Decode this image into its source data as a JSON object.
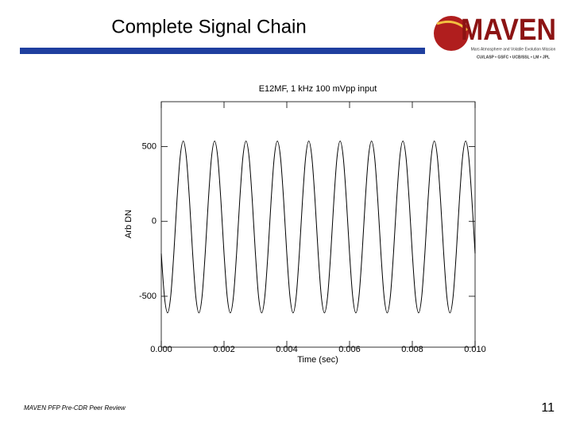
{
  "slide": {
    "title": "Complete Signal Chain",
    "footer": "MAVEN PFP Pre-CDR Peer Review",
    "page_number": "11",
    "logo": {
      "name": "MAVEN",
      "tagline": "Mars Atmosphere and Volatile Evolution Mission",
      "partners": "CU/LASP • GSFC • UCB/SSL • LM • JPL"
    }
  },
  "chart_data": {
    "type": "line",
    "title": "E12MF, 1 kHz 100 mVpp input",
    "x_label": "Time (sec)",
    "y_label": "Arb DN",
    "x": [
      0,
      0.0001,
      0.0002,
      0.0003,
      0.0004,
      0.0005,
      0.0006,
      0.0007,
      0.0008,
      0.0009,
      0.001,
      0.0011,
      0.0012,
      0.0013,
      0.0014,
      0.0015,
      0.0016,
      0.0017,
      0.0018,
      0.0019,
      0.002,
      0.0021,
      0.0022,
      0.0023,
      0.0024,
      0.0025,
      0.0026,
      0.0027,
      0.0028,
      0.0029,
      0.003,
      0.0031,
      0.0032,
      0.0033,
      0.0034,
      0.0035,
      0.0036,
      0.0037,
      0.0038,
      0.0039,
      0.004,
      0.0041,
      0.0042,
      0.0043,
      0.0044,
      0.0045,
      0.0046,
      0.0047,
      0.0048,
      0.0049,
      0.005,
      0.0051,
      0.0052,
      0.0053,
      0.0054,
      0.0055,
      0.0056,
      0.0057,
      0.0058,
      0.0059,
      0.006,
      0.0061,
      0.0062,
      0.0063,
      0.0064,
      0.0065,
      0.0066,
      0.0067,
      0.0068,
      0.0069,
      0.007,
      0.0071,
      0.0072,
      0.0073,
      0.0074,
      0.0075,
      0.0076,
      0.0077,
      0.0078,
      0.0079,
      0.008,
      0.0081,
      0.0082,
      0.0083,
      0.0084,
      0.0085,
      0.0086,
      0.0087,
      0.0088,
      0.0089,
      0.009,
      0.0091,
      0.0092,
      0.0093,
      0.0094,
      0.0095,
      0.0096,
      0.0097,
      0.0098,
      0.0099,
      0.01
    ],
    "series": [
      {
        "color": "#000000",
        "values": [
          -214,
          -501,
          -611,
          -501,
          -214,
          140,
          427,
          537,
          427,
          140,
          -214,
          -501,
          -611,
          -501,
          -214,
          140,
          427,
          537,
          427,
          140,
          -214,
          -501,
          -611,
          -501,
          -214,
          140,
          427,
          537,
          427,
          140,
          -214,
          -501,
          -611,
          -501,
          -214,
          140,
          427,
          537,
          427,
          140,
          -214,
          -501,
          -611,
          -501,
          -214,
          140,
          427,
          537,
          427,
          140,
          -214,
          -501,
          -611,
          -501,
          -214,
          140,
          427,
          537,
          427,
          140,
          -214,
          -501,
          -611,
          -501,
          -214,
          140,
          427,
          537,
          427,
          140,
          -214,
          -501,
          -611,
          -501,
          -214,
          140,
          427,
          537,
          427,
          140,
          -214,
          -501,
          -611,
          -501,
          -214,
          140,
          427,
          537,
          427,
          140,
          -214,
          -501,
          -611,
          -501,
          -214,
          140,
          427,
          537,
          427,
          140,
          -214
        ]
      }
    ],
    "xlim": [
      0,
      0.01
    ],
    "ylim": [
      -840,
      800
    ],
    "xticks": [
      {
        "value": 0,
        "label": "0.000"
      },
      {
        "value": 0.002,
        "label": "0.002"
      },
      {
        "value": 0.004,
        "label": "0.004"
      },
      {
        "value": 0.006,
        "label": "0.006"
      },
      {
        "value": 0.008,
        "label": "0.008"
      },
      {
        "value": 0.01,
        "label": "0.010"
      }
    ],
    "yticks": [
      -500,
      0,
      500
    ],
    "grid": false
  }
}
